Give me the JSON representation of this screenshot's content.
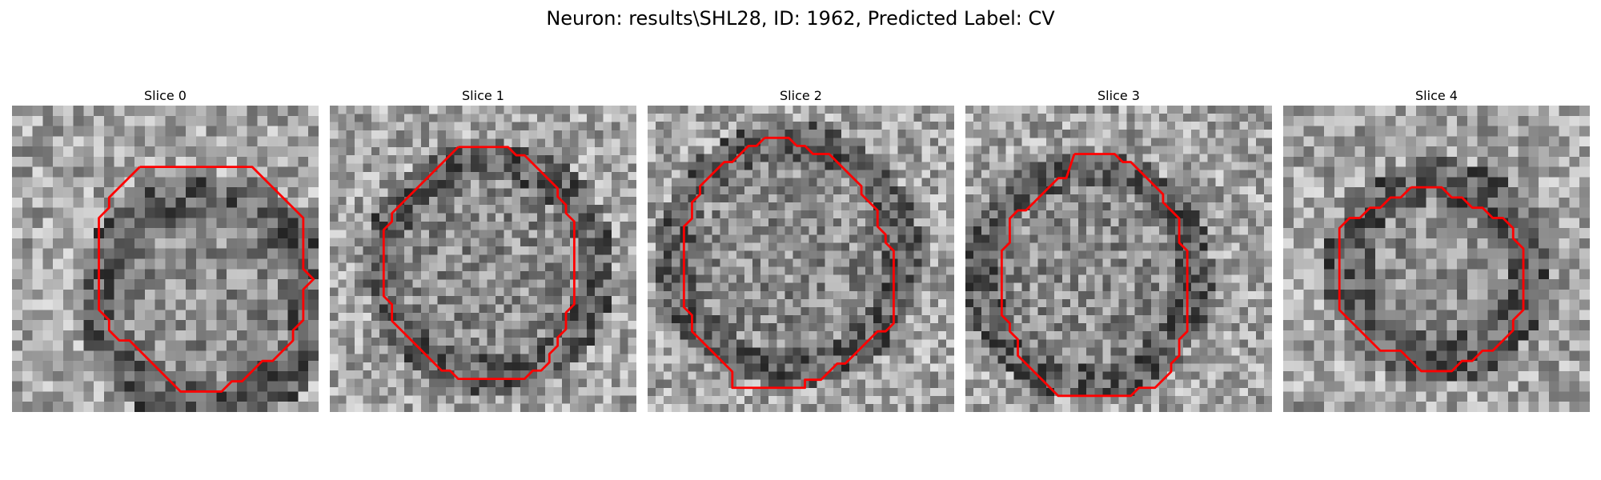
{
  "figure": {
    "title": "Neuron: results\\SHL28, ID: 1962, Predicted Label: CV",
    "contour_color": "#ff0000"
  },
  "panels": [
    {
      "title": "Slice 0",
      "seed": 11,
      "contour": [
        [
          12.5,
          6
        ],
        [
          23.5,
          6
        ],
        [
          28.5,
          11
        ],
        [
          28.5,
          16
        ],
        [
          29.5,
          17
        ],
        [
          28.5,
          18
        ],
        [
          28.5,
          21
        ],
        [
          27.5,
          22
        ],
        [
          27.5,
          23
        ],
        [
          25.5,
          25
        ],
        [
          24.5,
          25
        ],
        [
          22.5,
          27
        ],
        [
          21.5,
          27
        ],
        [
          20.5,
          28
        ],
        [
          16.5,
          28
        ],
        [
          11.5,
          23
        ],
        [
          10.5,
          23
        ],
        [
          9.5,
          22
        ],
        [
          9.5,
          21
        ],
        [
          8.5,
          20
        ],
        [
          8.5,
          11
        ],
        [
          9.5,
          10
        ],
        [
          9.5,
          9
        ]
      ]
    },
    {
      "title": "Slice 1",
      "seed": 27,
      "contour": [
        [
          15.5,
          5
        ],
        [
          21.5,
          5
        ],
        [
          22.5,
          6
        ],
        [
          23.5,
          6
        ],
        [
          27.5,
          10
        ],
        [
          27.5,
          11
        ],
        [
          28.5,
          12
        ],
        [
          28.5,
          13
        ],
        [
          29.5,
          14
        ],
        [
          29.5,
          24
        ],
        [
          28.5,
          25
        ],
        [
          28.5,
          27
        ],
        [
          27.5,
          28
        ],
        [
          27.5,
          29
        ],
        [
          26.5,
          30
        ],
        [
          26.5,
          31
        ],
        [
          25.5,
          32
        ],
        [
          24.5,
          32
        ],
        [
          23.5,
          33
        ],
        [
          15.5,
          33
        ],
        [
          14.5,
          32
        ],
        [
          13.5,
          32
        ],
        [
          8.5,
          27
        ],
        [
          7.5,
          26
        ],
        [
          7.5,
          24
        ],
        [
          6.5,
          23
        ],
        [
          6.5,
          15
        ],
        [
          7.5,
          14
        ],
        [
          7.5,
          13
        ],
        [
          9.5,
          11
        ],
        [
          11.5,
          9
        ],
        [
          12.5,
          8
        ],
        [
          14.5,
          6
        ]
      ]
    },
    {
      "title": "Slice 2",
      "seed": 43,
      "contour": [
        [
          14.5,
          4
        ],
        [
          17.5,
          4
        ],
        [
          18.5,
          5
        ],
        [
          19.5,
          5
        ],
        [
          20.5,
          6
        ],
        [
          22.5,
          6
        ],
        [
          25.5,
          9
        ],
        [
          26.5,
          10
        ],
        [
          26.5,
          11
        ],
        [
          28.5,
          13
        ],
        [
          28.5,
          15
        ],
        [
          29.5,
          16
        ],
        [
          29.5,
          17
        ],
        [
          30.5,
          18
        ],
        [
          30.5,
          27
        ],
        [
          29.5,
          28
        ],
        [
          28.5,
          28
        ],
        [
          27.5,
          29
        ],
        [
          26.5,
          30
        ],
        [
          25.5,
          31
        ],
        [
          24.5,
          32
        ],
        [
          23.5,
          32
        ],
        [
          21.5,
          34
        ],
        [
          19.5,
          34
        ],
        [
          19.5,
          35
        ],
        [
          10.5,
          35
        ],
        [
          10.5,
          33
        ],
        [
          9.5,
          32
        ],
        [
          7.5,
          30
        ],
        [
          6.5,
          29
        ],
        [
          5.5,
          28
        ],
        [
          5.5,
          26
        ],
        [
          4.5,
          25
        ],
        [
          4.5,
          15
        ],
        [
          5.5,
          14
        ],
        [
          5.5,
          12
        ],
        [
          6.5,
          11
        ],
        [
          6.5,
          10
        ],
        [
          8.5,
          8
        ],
        [
          9.5,
          7
        ],
        [
          10.5,
          7
        ],
        [
          11.5,
          6
        ],
        [
          12.5,
          5
        ],
        [
          13.5,
          5
        ]
      ]
    },
    {
      "title": "Slice 3",
      "seed": 59,
      "contour": [
        [
          13.5,
          6
        ],
        [
          18.5,
          6
        ],
        [
          19.5,
          7
        ],
        [
          20.5,
          7
        ],
        [
          24.5,
          11
        ],
        [
          24.5,
          12
        ],
        [
          26.5,
          14
        ],
        [
          26.5,
          17
        ],
        [
          27.5,
          18
        ],
        [
          27.5,
          28
        ],
        [
          26.5,
          29
        ],
        [
          26.5,
          31
        ],
        [
          25.5,
          32
        ],
        [
          25.5,
          33
        ],
        [
          23.5,
          35
        ],
        [
          21.5,
          35
        ],
        [
          20.5,
          36
        ],
        [
          11.5,
          36
        ],
        [
          9.5,
          34
        ],
        [
          8.5,
          33
        ],
        [
          7.5,
          32
        ],
        [
          6.5,
          31
        ],
        [
          6.5,
          29
        ],
        [
          5.5,
          28
        ],
        [
          5.5,
          27
        ],
        [
          4.5,
          26
        ],
        [
          4.5,
          18
        ],
        [
          5.5,
          17
        ],
        [
          5.5,
          14
        ],
        [
          6.5,
          13
        ],
        [
          7.5,
          13
        ],
        [
          8.5,
          12
        ],
        [
          9.5,
          11
        ],
        [
          10.5,
          10
        ],
        [
          11.5,
          9
        ],
        [
          12.5,
          9
        ]
      ]
    },
    {
      "title": "Slice 4",
      "seed": 75,
      "contour": [
        [
          12.5,
          8
        ],
        [
          15.5,
          8
        ],
        [
          16.5,
          9
        ],
        [
          17.5,
          9
        ],
        [
          18.5,
          10
        ],
        [
          19.5,
          10
        ],
        [
          20.5,
          11
        ],
        [
          21.5,
          11
        ],
        [
          22.5,
          12
        ],
        [
          22.5,
          13
        ],
        [
          23.5,
          14
        ],
        [
          23.5,
          20
        ],
        [
          22.5,
          21
        ],
        [
          22.5,
          22
        ],
        [
          20.5,
          24
        ],
        [
          19.5,
          24
        ],
        [
          18.5,
          25
        ],
        [
          17.5,
          25
        ],
        [
          16.5,
          26
        ],
        [
          13.5,
          26
        ],
        [
          11.5,
          24
        ],
        [
          9.5,
          24
        ],
        [
          8.5,
          23
        ],
        [
          7.5,
          22
        ],
        [
          5.5,
          20
        ],
        [
          5.5,
          12
        ],
        [
          6.5,
          11
        ],
        [
          7.5,
          11
        ],
        [
          8.5,
          10
        ],
        [
          9.5,
          10
        ],
        [
          10.5,
          9
        ],
        [
          11.5,
          9
        ]
      ]
    }
  ]
}
